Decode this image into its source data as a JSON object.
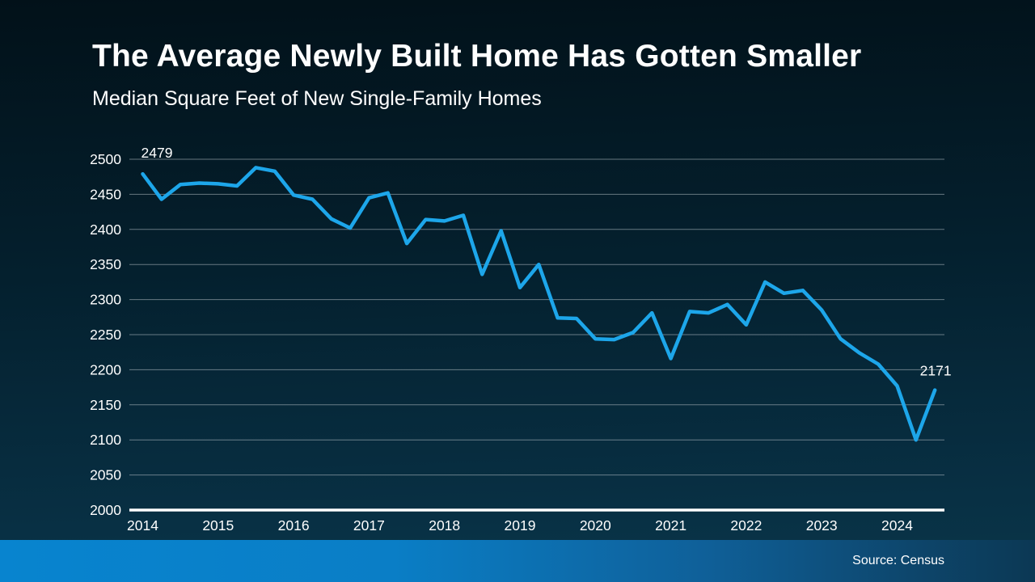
{
  "header": {
    "title": "The Average Newly Built Home Has Gotten Smaller",
    "subtitle": "Median Square Feet of New Single-Family Homes"
  },
  "footer": {
    "source": "Source: Census"
  },
  "chart_data": {
    "type": "line",
    "title": "The Average Newly Built Home Has Gotten Smaller",
    "subtitle": "Median Square Feet of New Single-Family Homes",
    "xlabel": "",
    "ylabel": "Median square feet",
    "ylim": [
      2000,
      2500
    ],
    "y_ticks": [
      2000,
      2050,
      2100,
      2150,
      2200,
      2250,
      2300,
      2350,
      2400,
      2450,
      2500
    ],
    "x_tick_labels": [
      "2014",
      "2015",
      "2016",
      "2017",
      "2018",
      "2019",
      "2020",
      "2021",
      "2022",
      "2023",
      "2024"
    ],
    "points_per_year": 4,
    "grid": "horizontal",
    "legend_position": "none",
    "line_color": "#1da6ea",
    "first_point_label": "2479",
    "last_point_label": "2171",
    "series": [
      {
        "name": "Median square feet of new single-family homes",
        "start": "2014-Q1",
        "end": "2024-Q3",
        "values": [
          2479,
          2443,
          2464,
          2466,
          2465,
          2462,
          2488,
          2483,
          2449,
          2443,
          2415,
          2402,
          2445,
          2452,
          2380,
          2414,
          2412,
          2420,
          2336,
          2398,
          2317,
          2350,
          2274,
          2273,
          2244,
          2243,
          2253,
          2281,
          2216,
          2283,
          2281,
          2293,
          2264,
          2325,
          2309,
          2313,
          2285,
          2244,
          2224,
          2208,
          2177,
          2100,
          2171
        ]
      }
    ]
  }
}
